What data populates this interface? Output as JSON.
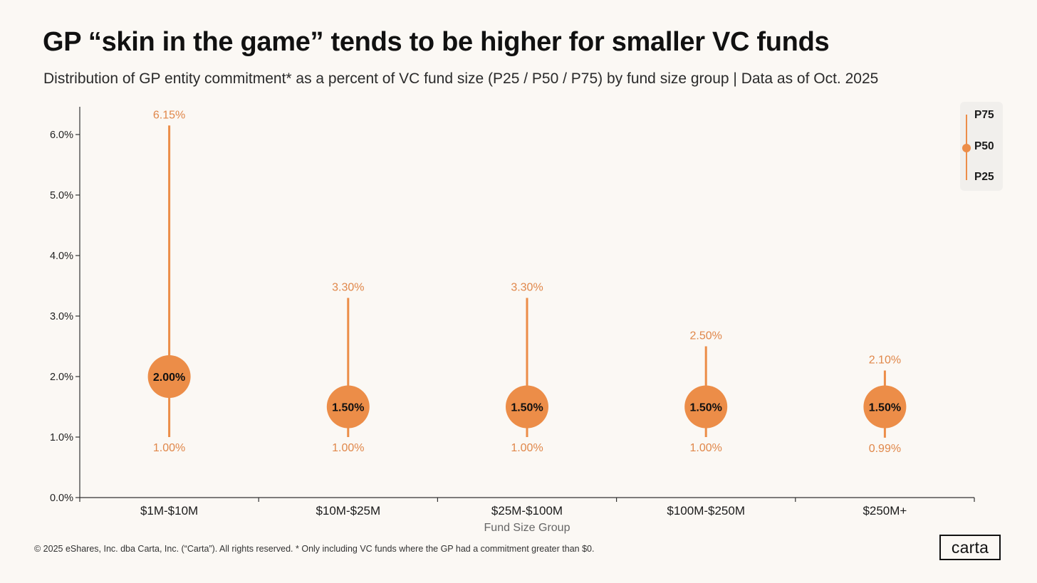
{
  "page": {
    "title": "GP “skin in the game” tends to be higher for smaller VC funds",
    "subtitle": "Distribution of GP entity commitment* as a percent of VC fund size (P25 / P50 / P75) by fund size group | Data as of Oct. 2025",
    "footer": "© 2025 eShares, Inc. dba Carta, Inc. (“Carta”). All rights reserved.  * Only including VC funds where the GP had a commitment greater than $0.",
    "logo": "carta"
  },
  "legend": {
    "p75": "P75",
    "p50": "P50",
    "p25": "P25"
  },
  "colors": {
    "accent": "#ec8d48",
    "label": "#e0874a",
    "axis": "#333333",
    "background": "#fbf8f4"
  },
  "chart_data": {
    "type": "range",
    "title": "GP “skin in the game” tends to be higher for smaller VC funds",
    "xlabel": "Fund Size Group",
    "ylabel": "",
    "ylim": [
      0,
      6.5
    ],
    "yticks": [
      0,
      1,
      2,
      3,
      4,
      5,
      6
    ],
    "ytick_labels": [
      "0.0%",
      "1.0%",
      "2.0%",
      "3.0%",
      "4.0%",
      "5.0%",
      "6.0%"
    ],
    "categories": [
      "$1M-$10M",
      "$10M-$25M",
      "$25M-$100M",
      "$100M-$250M",
      "$250M+"
    ],
    "series": [
      {
        "name": "P25",
        "values": [
          1.0,
          1.0,
          1.0,
          1.0,
          0.99
        ],
        "labels": [
          "1.00%",
          "1.00%",
          "1.00%",
          "1.00%",
          "0.99%"
        ]
      },
      {
        "name": "P50",
        "values": [
          2.0,
          1.5,
          1.5,
          1.5,
          1.5
        ],
        "labels": [
          "2.00%",
          "1.50%",
          "1.50%",
          "1.50%",
          "1.50%"
        ]
      },
      {
        "name": "P75",
        "values": [
          6.15,
          3.3,
          3.3,
          2.5,
          2.1
        ],
        "labels": [
          "6.15%",
          "3.30%",
          "3.30%",
          "2.50%",
          "2.10%"
        ]
      }
    ],
    "legend": [
      "P75",
      "P50",
      "P25"
    ],
    "legend_position": "top-right",
    "grid": false
  }
}
